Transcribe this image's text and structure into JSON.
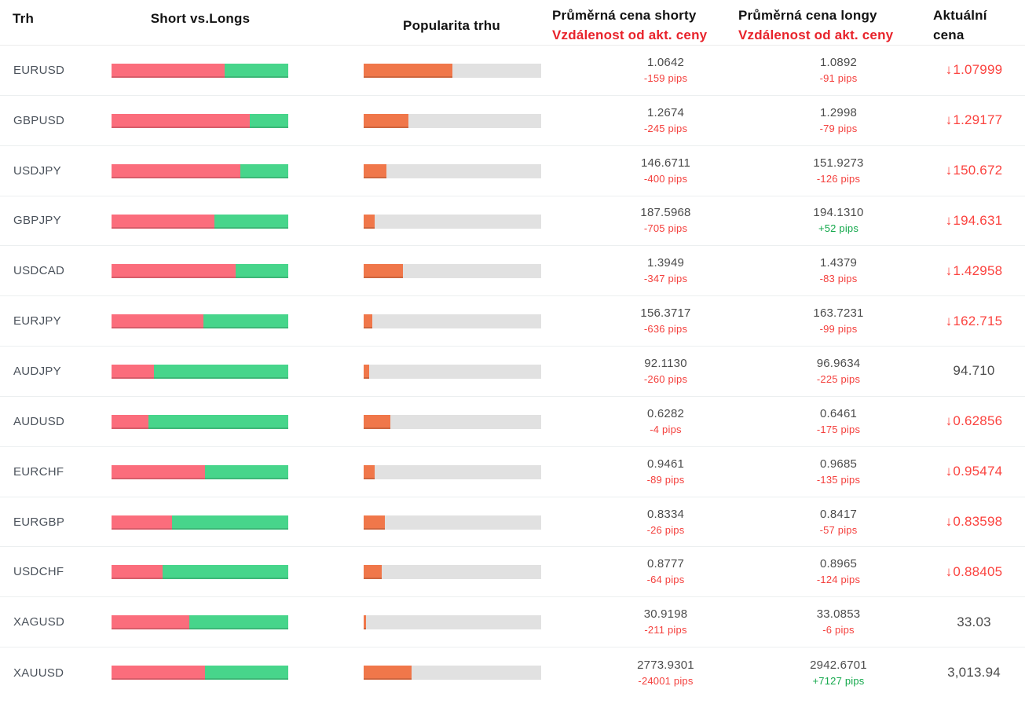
{
  "header": {
    "market": "Trh",
    "short_vs_longs": "Short vs.Longs",
    "popularity": "Popularita trhu",
    "avg_short_line1": "Průměrná cena shorty",
    "avg_short_line2": "Vzdálenost od akt. ceny",
    "avg_long_line1": "Průměrná cena longy",
    "avg_long_line2": "Vzdálenost od akt. ceny",
    "current_line1": "Aktuální",
    "current_line2": "cena"
  },
  "colors": {
    "short_bar": "#fb6d7c",
    "long_bar": "#47d58b",
    "popularity_bar": "#f0774a",
    "popularity_track": "#e1e1e1",
    "pips_negative": "#f4403d",
    "pips_positive": "#13a84b",
    "price_down": "#fb433f",
    "header_red": "#e8232b"
  },
  "icons": {
    "down_arrow": "↓"
  },
  "rows": [
    {
      "market": "EURUSD",
      "short_pct": 64,
      "popularity_pct": 50,
      "avg_short": "1.0642",
      "short_pips": "-159 pips",
      "short_dir": "neg",
      "avg_long": "1.0892",
      "long_pips": "-91 pips",
      "long_dir": "neg",
      "current": "1.07999",
      "current_down": true
    },
    {
      "market": "GBPUSD",
      "short_pct": 78,
      "popularity_pct": 25,
      "avg_short": "1.2674",
      "short_pips": "-245 pips",
      "short_dir": "neg",
      "avg_long": "1.2998",
      "long_pips": "-79 pips",
      "long_dir": "neg",
      "current": "1.29177",
      "current_down": true
    },
    {
      "market": "USDJPY",
      "short_pct": 73,
      "popularity_pct": 13,
      "avg_short": "146.6711",
      "short_pips": "-400 pips",
      "short_dir": "neg",
      "avg_long": "151.9273",
      "long_pips": "-126 pips",
      "long_dir": "neg",
      "current": "150.672",
      "current_down": true
    },
    {
      "market": "GBPJPY",
      "short_pct": 58,
      "popularity_pct": 6.4,
      "avg_short": "187.5968",
      "short_pips": "-705 pips",
      "short_dir": "neg",
      "avg_long": "194.1310",
      "long_pips": "+52 pips",
      "long_dir": "pos",
      "current": "194.631",
      "current_down": true
    },
    {
      "market": "USDCAD",
      "short_pct": 70,
      "popularity_pct": 22,
      "avg_short": "1.3949",
      "short_pips": "-347 pips",
      "short_dir": "neg",
      "avg_long": "1.4379",
      "long_pips": "-83 pips",
      "long_dir": "neg",
      "current": "1.42958",
      "current_down": true
    },
    {
      "market": "EURJPY",
      "short_pct": 52,
      "popularity_pct": 5,
      "avg_short": "156.3717",
      "short_pips": "-636 pips",
      "short_dir": "neg",
      "avg_long": "163.7231",
      "long_pips": "-99 pips",
      "long_dir": "neg",
      "current": "162.715",
      "current_down": true
    },
    {
      "market": "AUDJPY",
      "short_pct": 24,
      "popularity_pct": 3.3,
      "avg_short": "92.1130",
      "short_pips": "-260 pips",
      "short_dir": "neg",
      "avg_long": "96.9634",
      "long_pips": "-225 pips",
      "long_dir": "neg",
      "current": "94.710",
      "current_down": false
    },
    {
      "market": "AUDUSD",
      "short_pct": 21,
      "popularity_pct": 15,
      "avg_short": "0.6282",
      "short_pips": "-4 pips",
      "short_dir": "neg",
      "avg_long": "0.6461",
      "long_pips": "-175 pips",
      "long_dir": "neg",
      "current": "0.62856",
      "current_down": true
    },
    {
      "market": "EURCHF",
      "short_pct": 53,
      "popularity_pct": 6.4,
      "avg_short": "0.9461",
      "short_pips": "-89 pips",
      "short_dir": "neg",
      "avg_long": "0.9685",
      "long_pips": "-135 pips",
      "long_dir": "neg",
      "current": "0.95474",
      "current_down": true
    },
    {
      "market": "EURGBP",
      "short_pct": 34,
      "popularity_pct": 12,
      "avg_short": "0.8334",
      "short_pips": "-26 pips",
      "short_dir": "neg",
      "avg_long": "0.8417",
      "long_pips": "-57 pips",
      "long_dir": "neg",
      "current": "0.83598",
      "current_down": true
    },
    {
      "market": "USDCHF",
      "short_pct": 29,
      "popularity_pct": 10,
      "avg_short": "0.8777",
      "short_pips": "-64 pips",
      "short_dir": "neg",
      "avg_long": "0.8965",
      "long_pips": "-124 pips",
      "long_dir": "neg",
      "current": "0.88405",
      "current_down": true
    },
    {
      "market": "XAGUSD",
      "short_pct": 44,
      "popularity_pct": 1.3,
      "avg_short": "30.9198",
      "short_pips": "-211 pips",
      "short_dir": "neg",
      "avg_long": "33.0853",
      "long_pips": "-6 pips",
      "long_dir": "neg",
      "current": "33.03",
      "current_down": false
    },
    {
      "market": "XAUUSD",
      "short_pct": 53,
      "popularity_pct": 27,
      "avg_short": "2773.9301",
      "short_pips": "-24001 pips",
      "short_dir": "neg",
      "avg_long": "2942.6701",
      "long_pips": "+7127 pips",
      "long_dir": "pos",
      "current": "3,013.94",
      "current_down": false
    }
  ]
}
